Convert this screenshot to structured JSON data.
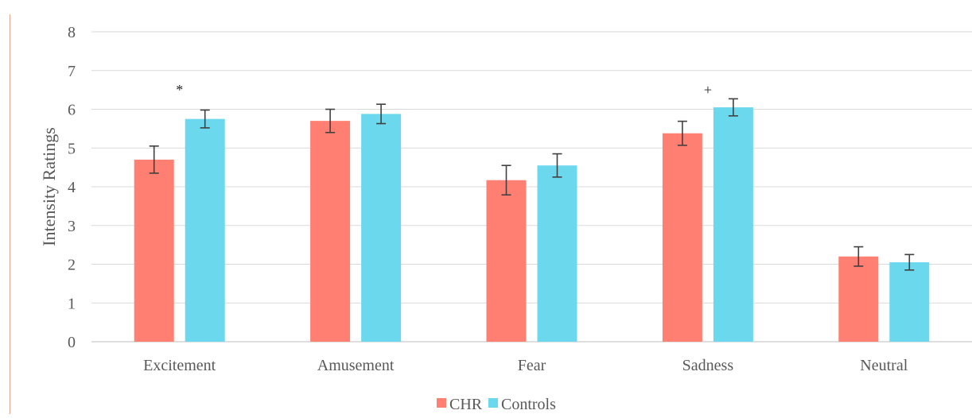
{
  "chart_data": {
    "type": "bar",
    "title": "",
    "xlabel": "",
    "ylabel": "Intensity Ratings",
    "ylim": [
      0,
      8
    ],
    "yticks": [
      "0",
      "1",
      "2",
      "3",
      "4",
      "5",
      "6",
      "7",
      "8"
    ],
    "grid": true,
    "legend_position": "bottom",
    "categories": [
      "Excitement",
      "Amusement",
      "Fear",
      "Sadness",
      "Neutral"
    ],
    "series": [
      {
        "name": "CHR",
        "color": "#ff7f72",
        "values": [
          4.7,
          5.7,
          4.17,
          5.38,
          2.2
        ],
        "error": [
          0.35,
          0.3,
          0.38,
          0.31,
          0.25
        ]
      },
      {
        "name": "Controls",
        "color": "#6cd8ee",
        "values": [
          5.75,
          5.88,
          4.55,
          6.05,
          2.05
        ],
        "error": [
          0.23,
          0.25,
          0.3,
          0.22,
          0.2
        ]
      }
    ],
    "annotations": [
      {
        "category": "Excitement",
        "text": "*",
        "y": 6.5
      },
      {
        "category": "Sadness",
        "text": "+",
        "y": 6.5
      }
    ]
  }
}
